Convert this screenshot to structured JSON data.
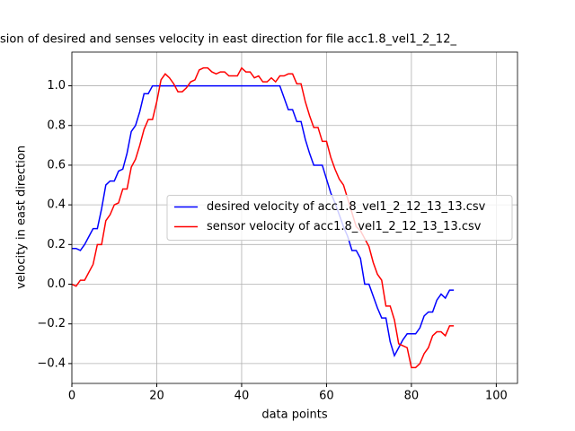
{
  "chart_data": {
    "type": "line",
    "title": "sion of desired and senses velocity in east direction for file acc1.8_vel1_2_12_",
    "x_label": "data points",
    "y_label": "velocity in east direction",
    "x": [
      0,
      1,
      2,
      3,
      4,
      5,
      6,
      7,
      8,
      9,
      10,
      11,
      12,
      13,
      14,
      15,
      16,
      17,
      18,
      19,
      20,
      21,
      22,
      23,
      24,
      25,
      26,
      27,
      28,
      29,
      30,
      31,
      32,
      33,
      34,
      35,
      36,
      37,
      38,
      39,
      40,
      41,
      42,
      43,
      44,
      45,
      46,
      47,
      48,
      49,
      50,
      51,
      52,
      53,
      54,
      55,
      56,
      57,
      58,
      59,
      60,
      61,
      62,
      63,
      64,
      65,
      66,
      67,
      68,
      69,
      70,
      71,
      72,
      73,
      74,
      75,
      76,
      77,
      78,
      79,
      80,
      81,
      82,
      83,
      84,
      85,
      86,
      87,
      88,
      89,
      90
    ],
    "series": [
      {
        "name": "desired velocity of acc1.8_vel1_2_12_13_13.csv",
        "color": "#0000ff",
        "values": [
          0.18,
          0.18,
          0.17,
          0.2,
          0.24,
          0.28,
          0.28,
          0.38,
          0.5,
          0.52,
          0.52,
          0.57,
          0.58,
          0.66,
          0.77,
          0.8,
          0.87,
          0.96,
          0.96,
          1.0,
          1.0,
          1.0,
          1.0,
          1.0,
          1.0,
          1.0,
          1.0,
          1.0,
          1.0,
          1.0,
          1.0,
          1.0,
          1.0,
          1.0,
          1.0,
          1.0,
          1.0,
          1.0,
          1.0,
          1.0,
          1.0,
          1.0,
          1.0,
          1.0,
          1.0,
          1.0,
          1.0,
          1.0,
          1.0,
          1.0,
          0.94,
          0.88,
          0.88,
          0.82,
          0.82,
          0.73,
          0.66,
          0.6,
          0.6,
          0.6,
          0.53,
          0.46,
          0.41,
          0.35,
          0.29,
          0.24,
          0.17,
          0.17,
          0.13,
          0.0,
          0.0,
          -0.06,
          -0.12,
          -0.17,
          -0.17,
          -0.29,
          -0.36,
          -0.32,
          -0.28,
          -0.25,
          -0.25,
          -0.25,
          -0.22,
          -0.16,
          -0.14,
          -0.14,
          -0.08,
          -0.05,
          -0.07,
          -0.03,
          -0.03
        ]
      },
      {
        "name": "sensor velocity of acc1.8_vel1_2_12_13_13.csv",
        "color": "#ff0000",
        "values": [
          0.0,
          -0.01,
          0.02,
          0.02,
          0.06,
          0.1,
          0.2,
          0.2,
          0.32,
          0.35,
          0.4,
          0.41,
          0.48,
          0.48,
          0.59,
          0.63,
          0.7,
          0.78,
          0.83,
          0.83,
          0.92,
          1.03,
          1.06,
          1.04,
          1.01,
          0.97,
          0.97,
          0.99,
          1.02,
          1.03,
          1.08,
          1.09,
          1.09,
          1.07,
          1.06,
          1.07,
          1.07,
          1.05,
          1.05,
          1.05,
          1.09,
          1.07,
          1.07,
          1.04,
          1.05,
          1.02,
          1.02,
          1.04,
          1.02,
          1.05,
          1.05,
          1.06,
          1.06,
          1.01,
          1.01,
          0.92,
          0.85,
          0.79,
          0.79,
          0.72,
          0.72,
          0.64,
          0.58,
          0.53,
          0.5,
          0.43,
          0.36,
          0.29,
          0.27,
          0.23,
          0.19,
          0.11,
          0.05,
          0.02,
          -0.11,
          -0.11,
          -0.18,
          -0.3,
          -0.31,
          -0.32,
          -0.42,
          -0.42,
          -0.4,
          -0.35,
          -0.32,
          -0.26,
          -0.24,
          -0.24,
          -0.26,
          -0.21,
          -0.21
        ]
      }
    ],
    "xlim": [
      0,
      105
    ],
    "ylim": [
      -0.5,
      1.17
    ],
    "xticks": [
      0,
      20,
      40,
      60,
      80,
      100
    ],
    "yticks": [
      {
        "value": -0.4,
        "label": "−0.4"
      },
      {
        "value": -0.2,
        "label": "−0.2"
      },
      {
        "value": 0,
        "label": "0.0"
      },
      {
        "value": 0.2,
        "label": "0.2"
      },
      {
        "value": 0.4,
        "label": "0.4"
      },
      {
        "value": 0.6,
        "label": "0.6"
      },
      {
        "value": 0.8,
        "label": "0.8"
      },
      {
        "value": 1.0,
        "label": "1.0"
      }
    ],
    "grid": true,
    "legend": "center right"
  }
}
